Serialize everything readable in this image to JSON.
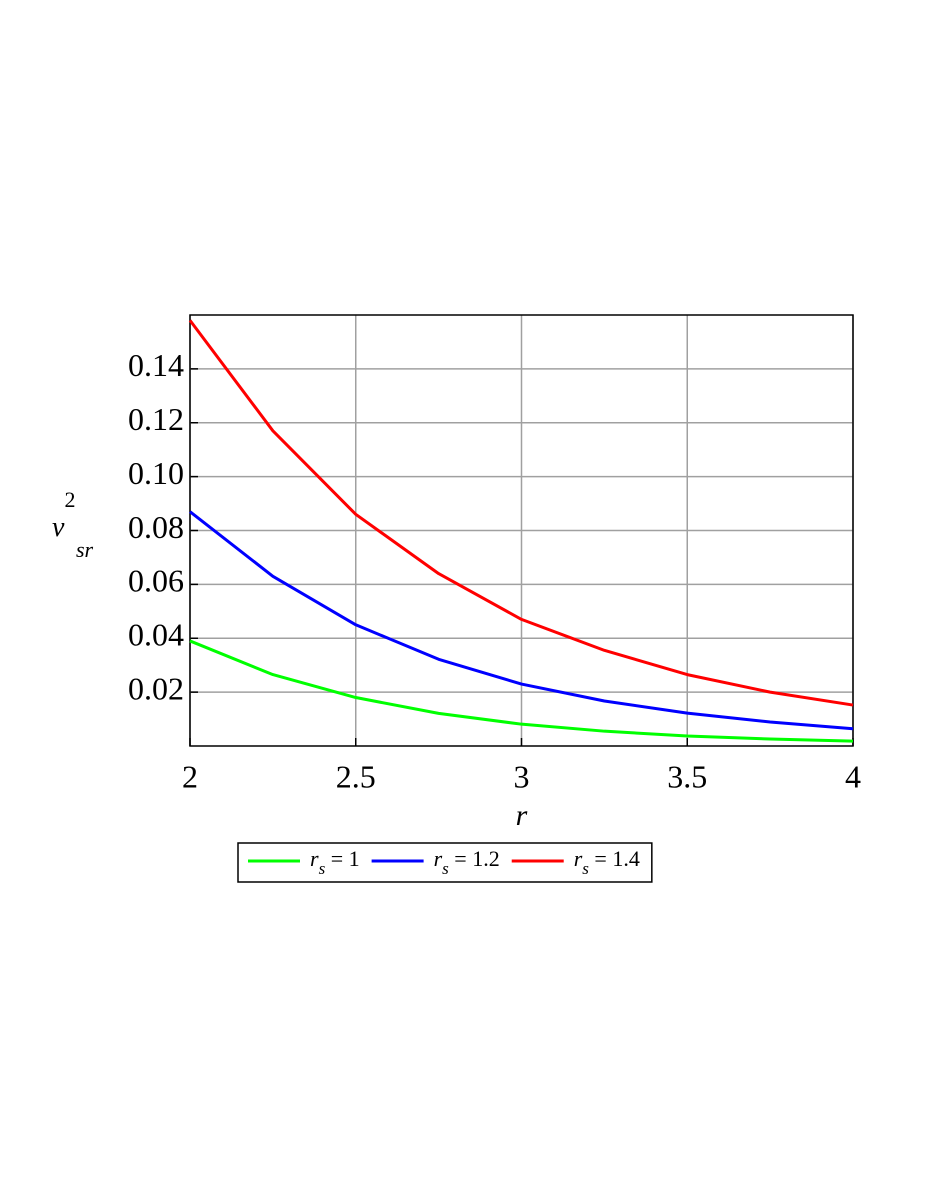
{
  "chart_data": {
    "type": "line",
    "xlabel": "r",
    "ylabel": [
      "v",
      "2",
      "sr"
    ],
    "x": [
      2,
      2.25,
      2.5,
      2.75,
      3,
      3.25,
      3.5,
      3.75,
      4
    ],
    "series": [
      {
        "name": [
          "r",
          "s",
          " = 1"
        ],
        "color": "#00ff00",
        "values": [
          0.039,
          0.0265,
          0.018,
          0.0121,
          0.0081,
          0.0055,
          0.0037,
          0.0026,
          0.0018
        ]
      },
      {
        "name": [
          "r",
          "s",
          " = 1.2"
        ],
        "color": "#0000ff",
        "values": [
          0.087,
          0.063,
          0.045,
          0.0322,
          0.023,
          0.0167,
          0.0122,
          0.0089,
          0.0064
        ]
      },
      {
        "name": [
          "r",
          "s",
          " = 1.4"
        ],
        "color": "#ff0000",
        "values": [
          0.158,
          0.117,
          0.086,
          0.064,
          0.047,
          0.0355,
          0.0265,
          0.02,
          0.0152
        ]
      }
    ],
    "xlim": [
      2,
      4
    ],
    "xticks": [
      2,
      2.5,
      3,
      3.5,
      4
    ],
    "ylim": [
      0,
      0.16
    ],
    "yticks": [
      0.02,
      0.04,
      0.06,
      0.08,
      {
        "value": 0.1,
        "label": "0.10"
      },
      0.12,
      0.14
    ],
    "grid": true,
    "legend": "bottom"
  }
}
